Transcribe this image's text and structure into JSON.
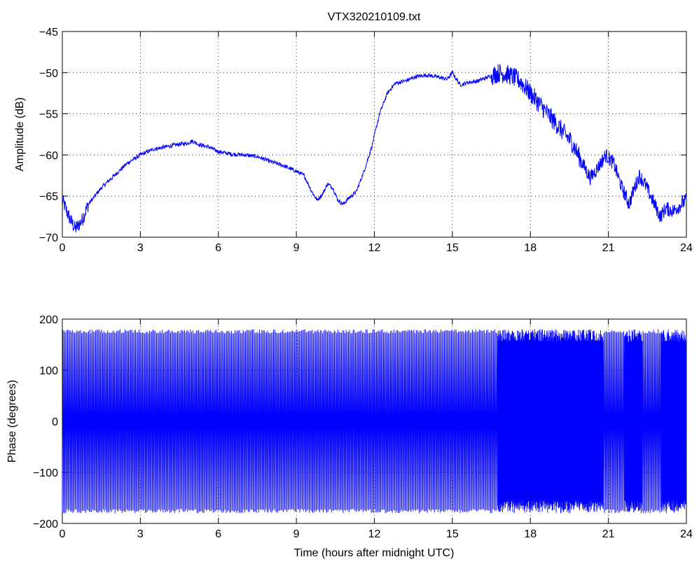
{
  "chart_data": [
    {
      "type": "line",
      "title": "VTX320210109.txt",
      "xlabel": "",
      "ylabel": "Amplitude (dB)",
      "xlim": [
        0,
        24
      ],
      "ylim": [
        -70,
        -45
      ],
      "xticks": [
        "0",
        "3",
        "6",
        "9",
        "12",
        "15",
        "18",
        "21",
        "24"
      ],
      "yticks": [
        "−70",
        "−65",
        "−60",
        "−55",
        "−50",
        "−45"
      ],
      "grid": true,
      "color": "#0000ff",
      "series": [
        {
          "x": [
            0,
            0.25,
            0.5,
            0.75,
            1,
            1.5,
            2,
            2.5,
            3,
            3.5,
            4,
            4.5,
            4.8,
            5,
            5.3,
            5.6,
            6,
            6.5,
            7,
            7.5,
            8,
            8.5,
            9,
            9.3,
            9.6,
            9.8,
            10,
            10.2,
            10.4,
            10.6,
            10.8,
            11,
            11.3,
            11.6,
            11.9,
            12.2,
            12.5,
            12.8,
            13.2,
            13.6,
            14,
            14.4,
            14.8,
            15,
            15.3,
            15.6,
            16,
            16.4,
            16.8,
            17.2,
            17.6,
            18,
            18.4,
            18.8,
            19.2,
            19.6,
            20,
            20.3,
            20.6,
            20.9,
            21.2,
            21.5,
            21.8,
            22,
            22.2,
            22.4,
            22.7,
            23,
            23.2,
            23.5,
            23.8,
            24
          ],
          "y": [
            -65.5,
            -67.5,
            -69,
            -68,
            -66,
            -64,
            -62.5,
            -61,
            -60,
            -59.3,
            -59,
            -58.7,
            -58.6,
            -58.3,
            -58.8,
            -59,
            -59.6,
            -59.9,
            -60,
            -60.2,
            -60.8,
            -61.3,
            -62,
            -62.5,
            -64.5,
            -65.5,
            -64.8,
            -63.5,
            -64,
            -65.5,
            -66,
            -65.3,
            -64.5,
            -62,
            -59,
            -55,
            -52.5,
            -51.3,
            -51,
            -50.5,
            -50.3,
            -50.5,
            -50.8,
            -50,
            -51.5,
            -51.2,
            -51,
            -50.5,
            -50,
            -50.3,
            -51,
            -52.5,
            -54,
            -55.5,
            -57,
            -58.5,
            -61,
            -62.8,
            -61.5,
            -60,
            -61,
            -63.8,
            -66,
            -64,
            -62.5,
            -63.5,
            -65.5,
            -67.5,
            -66.5,
            -66.8,
            -66,
            -65.5
          ]
        }
      ]
    },
    {
      "type": "line",
      "title": "",
      "xlabel": "Time (hours after midnight UTC)",
      "ylabel": "Phase (degrees)",
      "xlim": [
        0,
        24
      ],
      "ylim": [
        -200,
        200
      ],
      "xticks": [
        "0",
        "3",
        "6",
        "9",
        "12",
        "15",
        "18",
        "21",
        "24"
      ],
      "yticks": [
        "−200",
        "−100",
        "0",
        "100",
        "200"
      ],
      "grid": true,
      "color": "#0000ff",
      "series": [
        {
          "x": [
            0,
            24
          ],
          "y": [
            -180,
            180
          ],
          "description_range": [
            -180,
            180
          ]
        }
      ]
    }
  ]
}
